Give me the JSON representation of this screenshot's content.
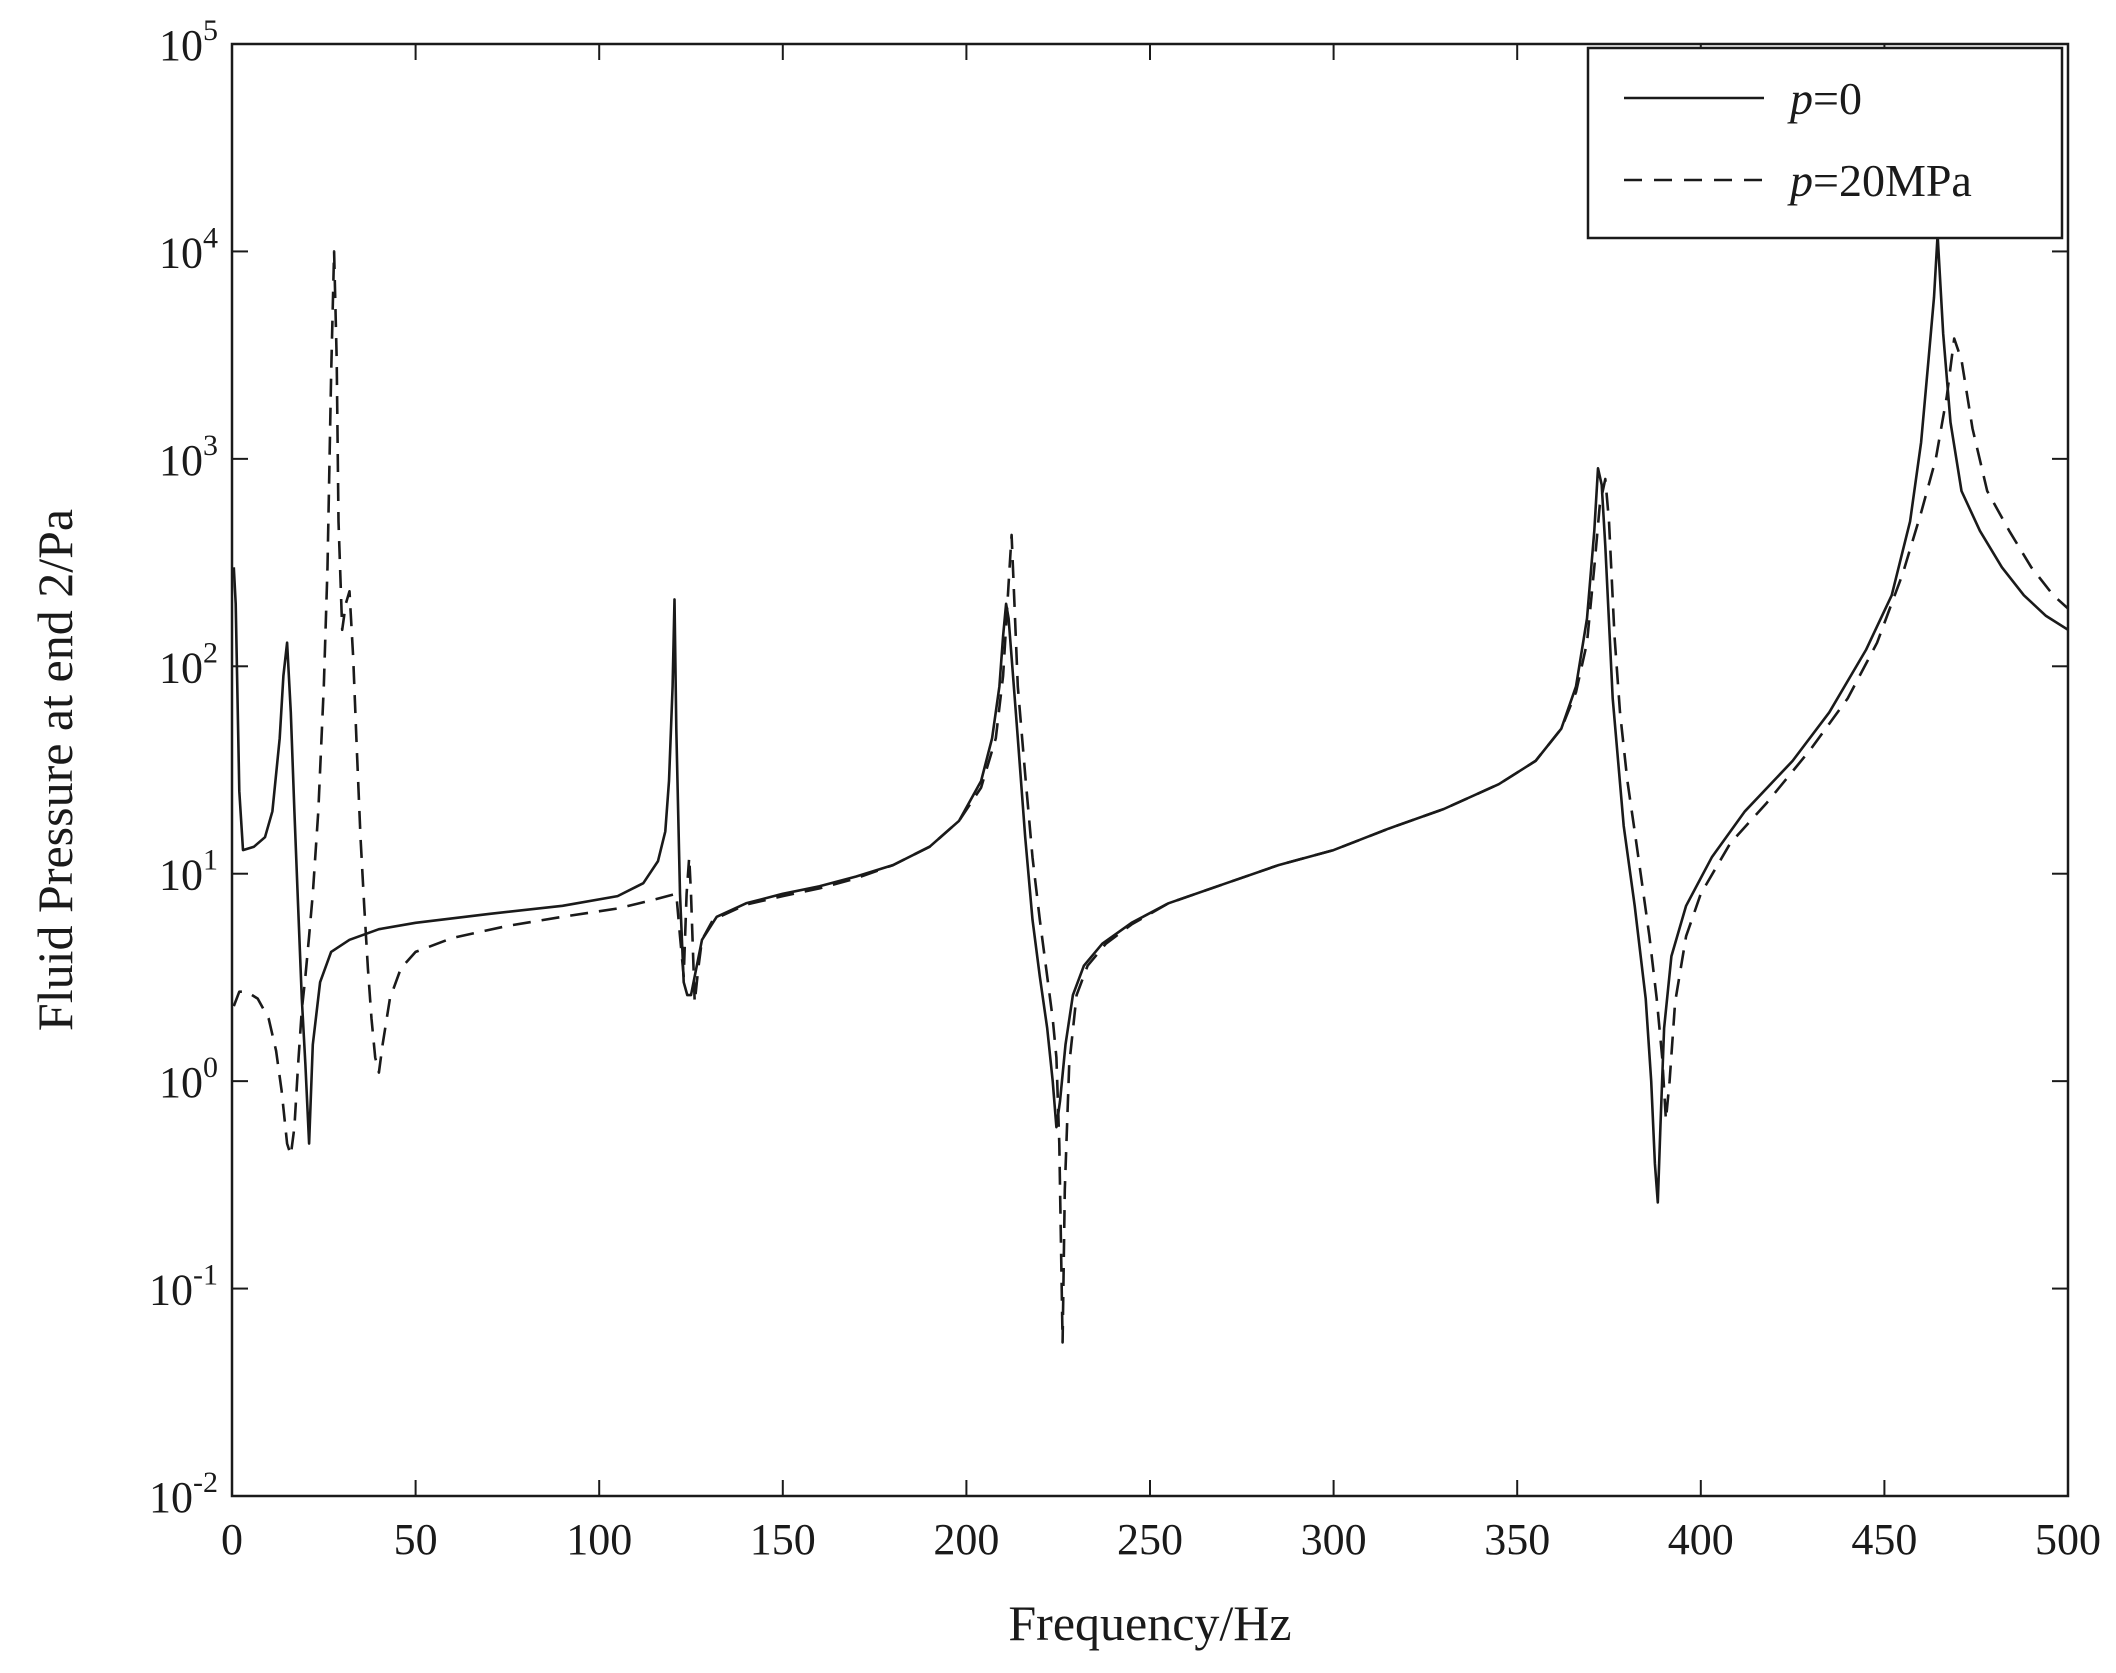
{
  "chart_data": {
    "type": "line",
    "title": "",
    "xlabel": "Frequency/Hz",
    "ylabel": "Fluid Pressure at end 2/Pa",
    "xlim": [
      0,
      500
    ],
    "ylim": [
      0.01,
      100000
    ],
    "yscale": "log",
    "grid": false,
    "legend_position": "top-right",
    "x_ticks": [
      {
        "label": "0",
        "value": 0
      },
      {
        "label": "50",
        "value": 50
      },
      {
        "label": "100",
        "value": 100
      },
      {
        "label": "150",
        "value": 150
      },
      {
        "label": "200",
        "value": 200
      },
      {
        "label": "250",
        "value": 250
      },
      {
        "label": "300",
        "value": 300
      },
      {
        "label": "350",
        "value": 350
      },
      {
        "label": "400",
        "value": 400
      },
      {
        "label": "450",
        "value": 450
      },
      {
        "label": "500",
        "value": 500
      }
    ],
    "y_ticks": [
      {
        "base": "10",
        "exp": "-2",
        "value": 0.01
      },
      {
        "base": "10",
        "exp": "-1",
        "value": 0.1
      },
      {
        "base": "10",
        "exp": "0",
        "value": 1
      },
      {
        "base": "10",
        "exp": "1",
        "value": 10
      },
      {
        "base": "10",
        "exp": "2",
        "value": 100
      },
      {
        "base": "10",
        "exp": "3",
        "value": 1000
      },
      {
        "base": "10",
        "exp": "4",
        "value": 10000
      },
      {
        "base": "10",
        "exp": "5",
        "value": 100000
      }
    ],
    "series": [
      {
        "name_italic": "p",
        "name_rest": "=0",
        "style": "solid",
        "color": "#1a1a1a",
        "points": [
          [
            0.5,
            300
          ],
          [
            1,
            200
          ],
          [
            2,
            25
          ],
          [
            3,
            13
          ],
          [
            6,
            13.5
          ],
          [
            9,
            15
          ],
          [
            11,
            20
          ],
          [
            13,
            45
          ],
          [
            14,
            90
          ],
          [
            15,
            130
          ],
          [
            16,
            60
          ],
          [
            17,
            20
          ],
          [
            18,
            7
          ],
          [
            19,
            2.5
          ],
          [
            20,
            1.2
          ],
          [
            21,
            0.5
          ],
          [
            22,
            1.5
          ],
          [
            24,
            3
          ],
          [
            27,
            4.2
          ],
          [
            32,
            4.8
          ],
          [
            40,
            5.4
          ],
          [
            50,
            5.8
          ],
          [
            70,
            6.4
          ],
          [
            90,
            7
          ],
          [
            105,
            7.8
          ],
          [
            112,
            9
          ],
          [
            116,
            11.5
          ],
          [
            118,
            16
          ],
          [
            119,
            28
          ],
          [
            120,
            80
          ],
          [
            120.5,
            210
          ],
          [
            121,
            50
          ],
          [
            122,
            8
          ],
          [
            123,
            3
          ],
          [
            124,
            2.6
          ],
          [
            125,
            2.6
          ],
          [
            126,
            3.2
          ],
          [
            128,
            4.8
          ],
          [
            132,
            6.2
          ],
          [
            140,
            7.2
          ],
          [
            150,
            8
          ],
          [
            160,
            8.7
          ],
          [
            170,
            9.7
          ],
          [
            180,
            11
          ],
          [
            190,
            13.5
          ],
          [
            198,
            18
          ],
          [
            204,
            28
          ],
          [
            207,
            45
          ],
          [
            209,
            80
          ],
          [
            210,
            140
          ],
          [
            210.8,
            200
          ],
          [
            211.5,
            170
          ],
          [
            212.5,
            100
          ],
          [
            214,
            45
          ],
          [
            216,
            15
          ],
          [
            218,
            6
          ],
          [
            220,
            3.2
          ],
          [
            222,
            1.8
          ],
          [
            223.5,
            1
          ],
          [
            224.5,
            0.6
          ],
          [
            225.5,
            0.8
          ],
          [
            227,
            1.5
          ],
          [
            229,
            2.6
          ],
          [
            232,
            3.6
          ],
          [
            237,
            4.6
          ],
          [
            245,
            5.8
          ],
          [
            255,
            7.2
          ],
          [
            270,
            8.9
          ],
          [
            285,
            11
          ],
          [
            300,
            13
          ],
          [
            315,
            16.5
          ],
          [
            330,
            20.5
          ],
          [
            345,
            27
          ],
          [
            355,
            35
          ],
          [
            362,
            50
          ],
          [
            366,
            80
          ],
          [
            369,
            170
          ],
          [
            371,
            450
          ],
          [
            372,
            900
          ],
          [
            373,
            750
          ],
          [
            374,
            380
          ],
          [
            376,
            70
          ],
          [
            379,
            17
          ],
          [
            382,
            7
          ],
          [
            385,
            2.5
          ],
          [
            386.5,
            1
          ],
          [
            387.5,
            0.4
          ],
          [
            388.3,
            0.26
          ],
          [
            389,
            0.6
          ],
          [
            390,
            1.8
          ],
          [
            392,
            4
          ],
          [
            396,
            7
          ],
          [
            403,
            12
          ],
          [
            412,
            20
          ],
          [
            425,
            35
          ],
          [
            435,
            60
          ],
          [
            445,
            120
          ],
          [
            452,
            220
          ],
          [
            457,
            500
          ],
          [
            460,
            1200
          ],
          [
            462,
            3000
          ],
          [
            463.5,
            6000
          ],
          [
            464.5,
            12000
          ],
          [
            466,
            4000
          ],
          [
            468,
            1500
          ],
          [
            471,
            700
          ],
          [
            476,
            450
          ],
          [
            482,
            300
          ],
          [
            488,
            220
          ],
          [
            494,
            175
          ],
          [
            500,
            150
          ]
        ]
      },
      {
        "name_italic": "p",
        "name_rest": "=20MPa",
        "style": "dashed",
        "color": "#1a1a1a",
        "points": [
          [
            0.5,
            2.3
          ],
          [
            2,
            2.7
          ],
          [
            4,
            2.7
          ],
          [
            7,
            2.5
          ],
          [
            10,
            2
          ],
          [
            12,
            1.4
          ],
          [
            13.5,
            0.9
          ],
          [
            15,
            0.5
          ],
          [
            16,
            0.44
          ],
          [
            17,
            0.6
          ],
          [
            18,
            1.2
          ],
          [
            19,
            2.2
          ],
          [
            20,
            3.2
          ],
          [
            21,
            5
          ],
          [
            22,
            8
          ],
          [
            23.5,
            20
          ],
          [
            25,
            80
          ],
          [
            26,
            300
          ],
          [
            27,
            2500
          ],
          [
            27.8,
            10000
          ],
          [
            28.5,
            3000
          ],
          [
            29,
            500
          ],
          [
            30,
            150
          ],
          [
            31,
            200
          ],
          [
            32,
            230
          ],
          [
            33,
            110
          ],
          [
            34,
            40
          ],
          [
            35,
            15
          ],
          [
            36,
            7
          ],
          [
            37,
            3.5
          ],
          [
            38,
            2
          ],
          [
            39,
            1.3
          ],
          [
            40,
            1.1
          ],
          [
            41,
            1.5
          ],
          [
            43,
            2.5
          ],
          [
            46,
            3.5
          ],
          [
            50,
            4.2
          ],
          [
            60,
            4.9
          ],
          [
            75,
            5.6
          ],
          [
            90,
            6.2
          ],
          [
            105,
            6.8
          ],
          [
            115,
            7.5
          ],
          [
            121,
            8
          ],
          [
            122,
            5
          ],
          [
            123,
            3.2
          ],
          [
            123.8,
            8
          ],
          [
            124.5,
            12
          ],
          [
            125,
            8
          ],
          [
            126,
            2.4
          ],
          [
            127,
            3.5
          ],
          [
            128,
            4.8
          ],
          [
            131,
            6
          ],
          [
            140,
            7.1
          ],
          [
            150,
            7.8
          ],
          [
            160,
            8.5
          ],
          [
            170,
            9.5
          ],
          [
            180,
            11
          ],
          [
            190,
            13.5
          ],
          [
            198,
            18
          ],
          [
            204,
            26
          ],
          [
            208,
            45
          ],
          [
            210,
            90
          ],
          [
            211.5,
            250
          ],
          [
            212.3,
            430
          ],
          [
            213,
            220
          ],
          [
            214,
            80
          ],
          [
            216,
            30
          ],
          [
            218,
            12
          ],
          [
            220,
            6
          ],
          [
            222,
            3.2
          ],
          [
            223.5,
            2
          ],
          [
            224.5,
            1.3
          ],
          [
            225.3,
            0.5
          ],
          [
            225.8,
            0.15
          ],
          [
            226.2,
            0.055
          ],
          [
            226.8,
            0.3
          ],
          [
            228,
            1.2
          ],
          [
            230,
            2.6
          ],
          [
            233,
            3.6
          ],
          [
            238,
            4.6
          ],
          [
            245,
            5.7
          ],
          [
            255,
            7.2
          ],
          [
            270,
            8.9
          ],
          [
            285,
            11
          ],
          [
            300,
            13
          ],
          [
            315,
            16.5
          ],
          [
            330,
            20.5
          ],
          [
            345,
            27
          ],
          [
            355,
            35
          ],
          [
            362,
            50
          ],
          [
            366,
            75
          ],
          [
            369,
            130
          ],
          [
            371,
            300
          ],
          [
            372.5,
            600
          ],
          [
            374,
            800
          ],
          [
            375,
            500
          ],
          [
            376.5,
            140
          ],
          [
            378,
            60
          ],
          [
            380,
            28
          ],
          [
            382,
            16
          ],
          [
            384,
            9
          ],
          [
            386,
            5
          ],
          [
            388,
            2.5
          ],
          [
            389.5,
            1.3
          ],
          [
            390.5,
            0.65
          ],
          [
            391.5,
            1
          ],
          [
            393,
            2.4
          ],
          [
            396,
            5
          ],
          [
            400,
            8
          ],
          [
            408,
            14
          ],
          [
            418,
            22
          ],
          [
            430,
            40
          ],
          [
            440,
            70
          ],
          [
            448,
            130
          ],
          [
            455,
            280
          ],
          [
            460,
            550
          ],
          [
            464,
            1000
          ],
          [
            467,
            2000
          ],
          [
            469,
            3800
          ],
          [
            471,
            3000
          ],
          [
            474,
            1400
          ],
          [
            478,
            700
          ],
          [
            484,
            450
          ],
          [
            490,
            300
          ],
          [
            496,
            220
          ],
          [
            500,
            190
          ]
        ]
      }
    ]
  }
}
